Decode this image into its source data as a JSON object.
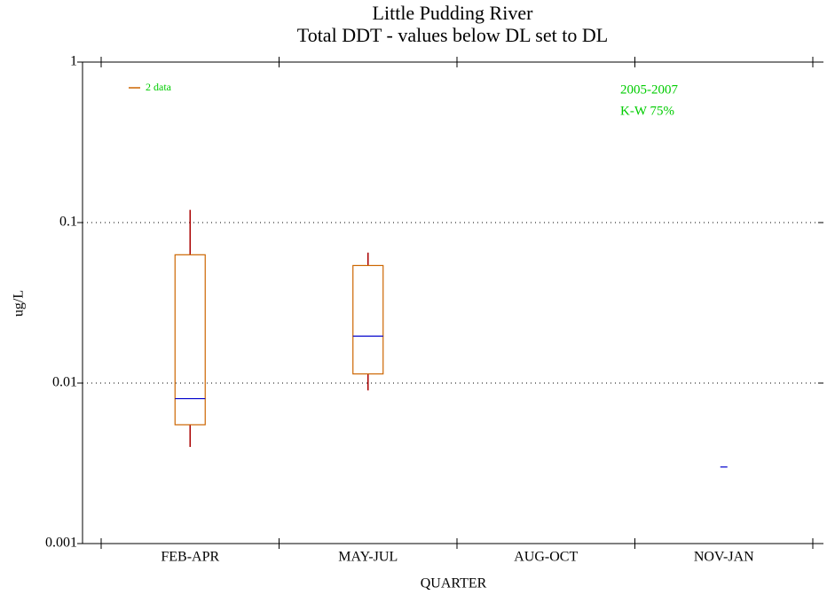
{
  "chart_data": {
    "type": "box",
    "title": "Little Pudding River",
    "subtitle": "Total DDT - values below DL set to DL",
    "x_label": "QUARTER",
    "y_label": "ug/L",
    "categories": [
      "FEB-APR",
      "MAY-JUL",
      "AUG-OCT",
      "NOV-JAN"
    ],
    "series": [
      {
        "name": "2 data",
        "color": "#cc6600",
        "whisker_color": "#aa0000",
        "median_color": "#0000cc",
        "min": [
          0.004,
          0.009,
          null,
          null
        ],
        "q1": [
          0.0055,
          0.0114,
          null,
          null
        ],
        "median": [
          0.008,
          0.0196,
          null,
          0.003
        ],
        "q3": [
          0.063,
          0.054,
          null,
          null
        ],
        "max": [
          0.12,
          0.065,
          null,
          null
        ]
      }
    ],
    "ylim": [
      0.001,
      1
    ],
    "yticks": [
      0.001,
      0.01,
      0.1,
      1
    ],
    "log_y": true,
    "grid": true,
    "legend": "upper left",
    "annotations": [
      "2005-2007",
      "K-W 75%"
    ],
    "annotation_color": "#00cc00"
  }
}
